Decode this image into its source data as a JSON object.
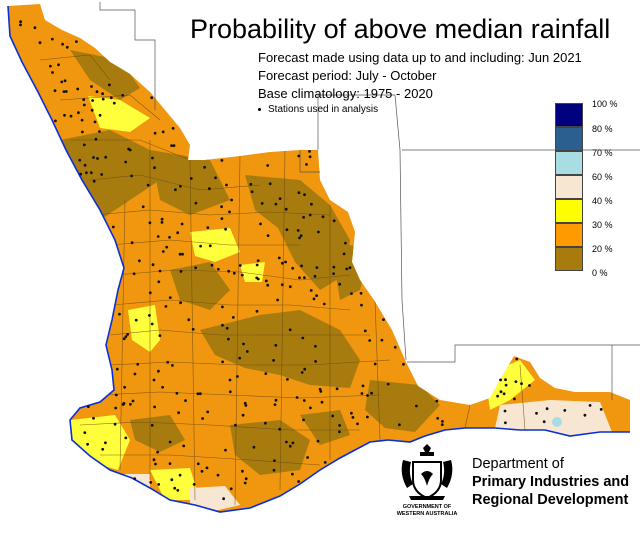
{
  "title": "Probability of above median rainfall",
  "info": {
    "forecast_made": "Forecast made using data up to and including: Jun 2021",
    "forecast_period": "Forecast period: July - October",
    "base_climatology": "Base climatology: 1975 - 2020",
    "stations_note": "Stations used in analysis"
  },
  "legend": [
    {
      "label": "100 %",
      "color": "#00007f"
    },
    {
      "label": "80 %",
      "color": "#2b5f8f"
    },
    {
      "label": "70 %",
      "color": "#a7dde3"
    },
    {
      "label": "60 %",
      "color": "#f7e6d2"
    },
    {
      "label": "40 %",
      "color": "#ffff00"
    },
    {
      "label": "30 %",
      "color": "#ff9a00"
    },
    {
      "label": "20 %",
      "color": "#a87b0e"
    },
    {
      "label": "0 %",
      "color": ""
    }
  ],
  "colors": {
    "land_base": "#f0960f",
    "low_zone": "#a87b0e",
    "high_zone": "#ffff3c",
    "pale_zone": "#f7e6d2",
    "coastline": "#0a2fd6"
  },
  "department": {
    "line1": "Department of",
    "line2": "Primary Industries and",
    "line3": "Regional Development"
  },
  "logo": {
    "line1": "GOVERNMENT OF",
    "line2": "WESTERN AUSTRALIA"
  }
}
